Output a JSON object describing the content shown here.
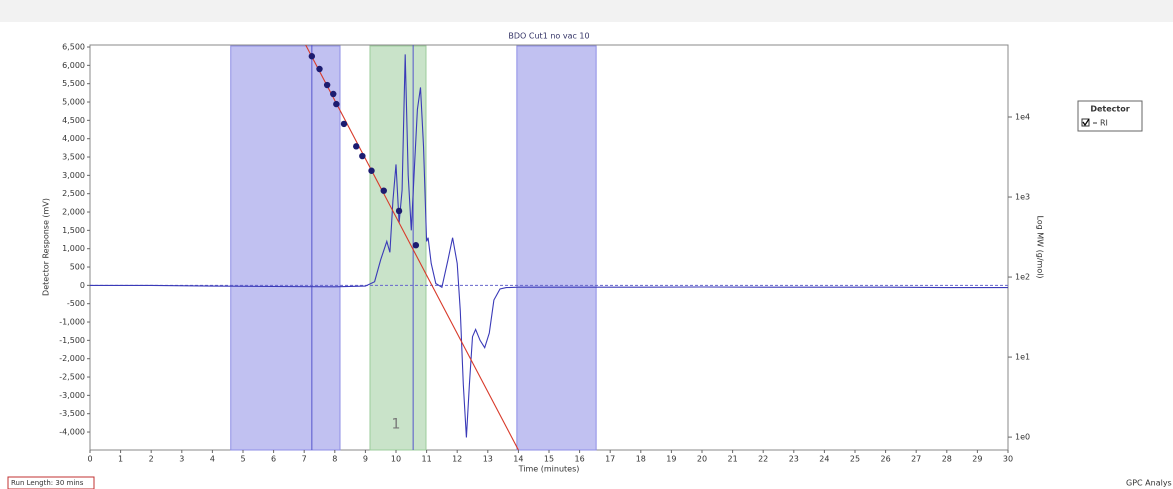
{
  "chart_data": {
    "type": "line",
    "title": "BDO Cut1 no vac 10",
    "x_label": "Time (minutes)",
    "y_label": "Detector Response (mV)",
    "y2_label": "Log MW (g/mol)",
    "legend_title": "Detector",
    "legend_position": "right",
    "xlim": [
      0,
      30
    ],
    "xticks": [
      0,
      1,
      2,
      3,
      4,
      5,
      6,
      7,
      8,
      9,
      10,
      11,
      12,
      13,
      14,
      15,
      16,
      17,
      18,
      19,
      20,
      21,
      22,
      23,
      24,
      25,
      26,
      27,
      28,
      29,
      30
    ],
    "ylim": [
      -4490,
      6555
    ],
    "yticks": [
      {
        "value": 6500,
        "label": "6,500"
      },
      {
        "value": 6000,
        "label": "6,000"
      },
      {
        "value": 5500,
        "label": "5,500"
      },
      {
        "value": 5000,
        "label": "5,000"
      },
      {
        "value": 4500,
        "label": "4,500"
      },
      {
        "value": 4000,
        "label": "4,000"
      },
      {
        "value": 3500,
        "label": "3,500"
      },
      {
        "value": 3000,
        "label": "3,000"
      },
      {
        "value": 2500,
        "label": "2,500"
      },
      {
        "value": 2000,
        "label": "2,000"
      },
      {
        "value": 1500,
        "label": "1,500"
      },
      {
        "value": 1000,
        "label": "1,000"
      },
      500,
      0,
      -500,
      {
        "value": -1000,
        "label": "-1,000"
      },
      {
        "value": -1500,
        "label": "-1,500"
      },
      {
        "value": -2000,
        "label": "-2,000"
      },
      {
        "value": -2500,
        "label": "-2,500"
      },
      {
        "value": -3000,
        "label": "-3,000"
      },
      {
        "value": -3500,
        "label": "-3,500"
      },
      {
        "value": -4000,
        "label": "-4,000"
      }
    ],
    "y2_log": true,
    "y2lim": [
      0.69,
      79400
    ],
    "y2ticks": [
      {
        "value": 10000,
        "label": "1e4"
      },
      {
        "value": 1000,
        "label": "1e3"
      },
      {
        "value": 100,
        "label": "1e2"
      },
      {
        "value": 10,
        "label": "1e1"
      },
      {
        "value": 1,
        "label": "1e0"
      }
    ],
    "regions": [
      {
        "start": 4.6,
        "end": 8.17,
        "color": "#8e8ee6"
      },
      {
        "start": 9.15,
        "end": 10.98,
        "color": "#9ccc9c"
      },
      {
        "start": 13.95,
        "end": 16.54,
        "color": "#8e8ee6"
      }
    ],
    "vlines": [
      7.25,
      10.56
    ],
    "peak_labels": [
      {
        "text": "1",
        "x": 10,
        "y": -3800
      }
    ],
    "series": [
      {
        "name": "RI",
        "color": "#3a3ab8",
        "x": [
          0,
          2,
          4,
          6,
          8,
          9,
          9.3,
          9.5,
          9.7,
          9.8,
          9.9,
          10.0,
          10.1,
          10.2,
          10.3,
          10.4,
          10.5,
          10.6,
          10.7,
          10.8,
          10.9,
          11.0,
          11.05,
          11.15,
          11.3,
          11.5,
          11.7,
          11.85,
          12.0,
          12.1,
          12.2,
          12.3,
          12.4,
          12.5,
          12.6,
          12.75,
          12.9,
          13.05,
          13.2,
          13.4,
          13.6,
          14,
          16,
          18,
          20,
          22,
          24,
          26,
          28,
          30
        ],
        "values": [
          0,
          0,
          -20,
          -30,
          -40,
          -20,
          100,
          700,
          1200,
          900,
          2300,
          3300,
          1700,
          2600,
          6300,
          3000,
          1500,
          3200,
          4800,
          5400,
          3800,
          1200,
          1300,
          600,
          50,
          -50,
          700,
          1300,
          600,
          -700,
          -2700,
          -4150,
          -2700,
          -1400,
          -1200,
          -1500,
          -1700,
          -1300,
          -400,
          -100,
          -60,
          -50,
          -50,
          -50,
          -45,
          -50,
          -50,
          -50,
          -60,
          -60
        ]
      },
      {
        "color": "#d83a2a",
        "axis": "y2",
        "x": [
          7.05,
          14.0
        ],
        "values": [
          79400,
          0.69
        ]
      },
      {
        "color": "#1c1c70",
        "axis": "y2",
        "marker": "dot",
        "x": [
          7.25,
          7.5,
          7.75,
          7.95,
          8.05,
          8.3,
          8.7,
          8.9,
          9.2,
          9.6,
          10.1,
          10.65
        ],
        "values": [
          57500,
          39800,
          25100,
          19400,
          14500,
          8200,
          4300,
          3250,
          2130,
          1200,
          670,
          250
        ]
      }
    ],
    "run_length": "Run Length: 30 mins",
    "footer_right": "GPC Analys"
  }
}
